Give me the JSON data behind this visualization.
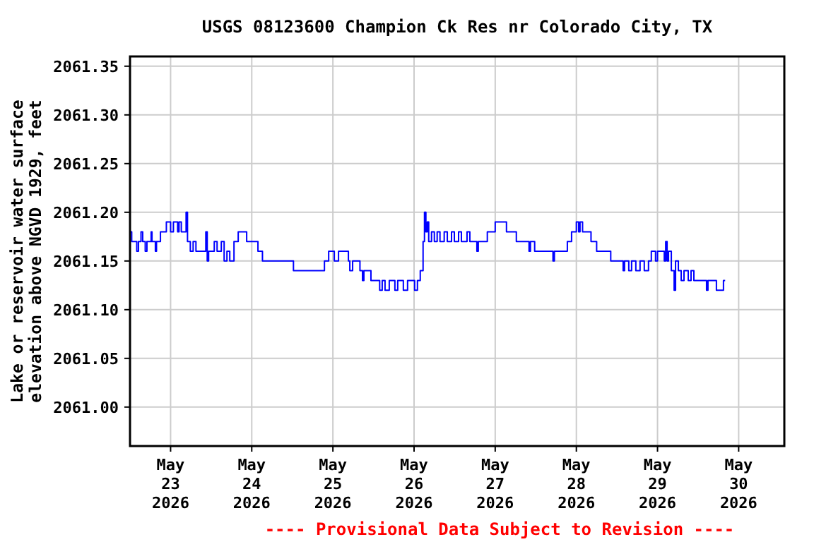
{
  "chart_data": {
    "type": "step",
    "title": "USGS 08123600 Champion Ck Res nr Colorado City, TX",
    "ylabel": "Lake or reservoir water surface\nelevation above NGVD 1929, feet",
    "annotations": [
      "---- Provisional Data Subject to Revision ----"
    ],
    "xlim": [
      "2026-05-22T12:00",
      "2026-05-30T13:30"
    ],
    "xticks": [
      {
        "value": "2026-05-23",
        "label": "May\n23\n2026"
      },
      {
        "value": "2026-05-24",
        "label": "May\n24\n2026"
      },
      {
        "value": "2026-05-25",
        "label": "May\n25\n2026"
      },
      {
        "value": "2026-05-26",
        "label": "May\n26\n2026"
      },
      {
        "value": "2026-05-27",
        "label": "May\n27\n2026"
      },
      {
        "value": "2026-05-28",
        "label": "May\n28\n2026"
      },
      {
        "value": "2026-05-29",
        "label": "May\n29\n2026"
      },
      {
        "value": "2026-05-30",
        "label": "May\n30\n2026"
      }
    ],
    "ylim": [
      2060.96,
      2061.36
    ],
    "yticks": [
      {
        "value": 2061,
        "label": "2061.00"
      },
      {
        "value": 2061.05,
        "label": "2061.05"
      },
      {
        "value": 2061.1,
        "label": "2061.10"
      },
      {
        "value": 2061.15,
        "label": "2061.15"
      },
      {
        "value": 2061.2,
        "label": "2061.20"
      },
      {
        "value": 2061.25,
        "label": "2061.25"
      },
      {
        "value": 2061.3,
        "label": "2061.30"
      },
      {
        "value": 2061.35,
        "label": "2061.35"
      }
    ],
    "grid": true,
    "line_style": "solid",
    "series": [
      {
        "color": "#0000ff",
        "x": [
          "2026-05-22T12:00",
          "2026-05-22T12:30",
          "2026-05-22T14:00",
          "2026-05-22T14:30",
          "2026-05-22T15:15",
          "2026-05-22T15:45",
          "2026-05-22T16:30",
          "2026-05-22T17:00",
          "2026-05-22T18:15",
          "2026-05-22T18:30",
          "2026-05-22T19:30",
          "2026-05-22T19:50",
          "2026-05-22T21:00",
          "2026-05-22T22:45",
          "2026-05-23T00:00",
          "2026-05-23T00:50",
          "2026-05-23T02:05",
          "2026-05-23T02:30",
          "2026-05-23T03:10",
          "2026-05-23T04:35",
          "2026-05-23T05:00",
          "2026-05-23T05:50",
          "2026-05-23T06:40",
          "2026-05-23T07:30",
          "2026-05-23T07:55",
          "2026-05-23T10:25",
          "2026-05-23T10:50",
          "2026-05-23T11:15",
          "2026-05-23T12:55",
          "2026-05-23T13:45",
          "2026-05-23T15:00",
          "2026-05-23T15:50",
          "2026-05-23T16:40",
          "2026-05-23T17:30",
          "2026-05-23T18:45",
          "2026-05-23T20:00",
          "2026-05-23T22:30",
          "2026-05-24T01:50",
          "2026-05-24T03:10",
          "2026-05-24T12:20",
          "2026-05-24T21:30",
          "2026-05-24T22:45",
          "2026-05-25T00:25",
          "2026-05-25T01:40",
          "2026-05-25T04:35",
          "2026-05-25T05:00",
          "2026-05-25T05:50",
          "2026-05-25T08:00",
          "2026-05-25T08:45",
          "2026-05-25T09:10",
          "2026-05-25T11:15",
          "2026-05-25T13:50",
          "2026-05-25T14:35",
          "2026-05-25T15:25",
          "2026-05-25T16:40",
          "2026-05-25T18:20",
          "2026-05-25T19:10",
          "2026-05-25T20:50",
          "2026-05-25T22:05",
          "2026-05-26T00:10",
          "2026-05-26T01:00",
          "2026-05-26T01:50",
          "2026-05-26T02:40",
          "2026-05-26T03:05",
          "2026-05-26T03:30",
          "2026-05-26T03:55",
          "2026-05-26T04:20",
          "2026-05-26T05:10",
          "2026-05-26T06:00",
          "2026-05-26T06:50",
          "2026-05-26T07:40",
          "2026-05-26T08:55",
          "2026-05-26T09:50",
          "2026-05-26T11:05",
          "2026-05-26T11:55",
          "2026-05-26T13:10",
          "2026-05-26T14:00",
          "2026-05-26T15:40",
          "2026-05-26T16:30",
          "2026-05-26T18:35",
          "2026-05-26T19:00",
          "2026-05-26T21:40",
          "2026-05-27T00:00",
          "2026-05-27T03:20",
          "2026-05-27T06:15",
          "2026-05-27T10:00",
          "2026-05-27T10:25",
          "2026-05-27T11:40",
          "2026-05-27T17:05",
          "2026-05-27T17:30",
          "2026-05-27T21:20",
          "2026-05-27T22:35",
          "2026-05-28T00:00",
          "2026-05-28T00:40",
          "2026-05-28T01:05",
          "2026-05-28T01:50",
          "2026-05-28T04:20",
          "2026-05-28T06:00",
          "2026-05-28T10:10",
          "2026-05-28T13:50",
          "2026-05-28T14:15",
          "2026-05-28T15:30",
          "2026-05-28T16:20",
          "2026-05-28T17:35",
          "2026-05-28T18:50",
          "2026-05-28T20:05",
          "2026-05-28T21:20",
          "2026-05-28T22:10",
          "2026-05-28T23:25",
          "2026-05-29T00:00",
          "2026-05-29T02:00",
          "2026-05-29T02:25",
          "2026-05-29T02:50",
          "2026-05-29T03:15",
          "2026-05-29T04:05",
          "2026-05-29T04:55",
          "2026-05-29T05:20",
          "2026-05-29T06:10",
          "2026-05-29T07:00",
          "2026-05-29T07:50",
          "2026-05-29T09:05",
          "2026-05-29T09:55",
          "2026-05-29T10:45",
          "2026-05-29T14:30",
          "2026-05-29T14:55",
          "2026-05-29T17:25",
          "2026-05-29T19:30",
          "2026-05-29T20:00"
        ],
        "values": [
          2061.18,
          2061.17,
          2061.16,
          2061.17,
          2061.18,
          2061.17,
          2061.16,
          2061.17,
          2061.18,
          2061.17,
          2061.16,
          2061.17,
          2061.18,
          2061.19,
          2061.18,
          2061.19,
          2061.18,
          2061.19,
          2061.18,
          2061.2,
          2061.17,
          2061.16,
          2061.17,
          2061.16,
          2061.16,
          2061.18,
          2061.15,
          2061.16,
          2061.17,
          2061.16,
          2061.17,
          2061.15,
          2061.16,
          2061.15,
          2061.17,
          2061.18,
          2061.17,
          2061.16,
          2061.15,
          2061.14,
          2061.15,
          2061.16,
          2061.15,
          2061.16,
          2061.15,
          2061.14,
          2061.15,
          2061.14,
          2061.13,
          2061.14,
          2061.13,
          2061.12,
          2061.13,
          2061.12,
          2061.13,
          2061.12,
          2061.13,
          2061.12,
          2061.13,
          2061.12,
          2061.13,
          2061.14,
          2061.17,
          2061.2,
          2061.18,
          2061.19,
          2061.17,
          2061.18,
          2061.17,
          2061.18,
          2061.17,
          2061.18,
          2061.17,
          2061.18,
          2061.17,
          2061.18,
          2061.17,
          2061.18,
          2061.17,
          2061.16,
          2061.17,
          2061.18,
          2061.19,
          2061.18,
          2061.17,
          2061.16,
          2061.17,
          2061.16,
          2061.15,
          2061.16,
          2061.17,
          2061.18,
          2061.19,
          2061.18,
          2061.19,
          2061.18,
          2061.17,
          2061.16,
          2061.15,
          2061.14,
          2061.15,
          2061.14,
          2061.15,
          2061.14,
          2061.15,
          2061.14,
          2061.15,
          2061.16,
          2061.15,
          2061.16,
          2061.15,
          2061.17,
          2061.15,
          2061.16,
          2061.14,
          2061.12,
          2061.15,
          2061.14,
          2061.13,
          2061.14,
          2061.13,
          2061.14,
          2061.13,
          2061.12,
          2061.13,
          2061.12,
          2061.13,
          2061.13
        ]
      }
    ]
  }
}
